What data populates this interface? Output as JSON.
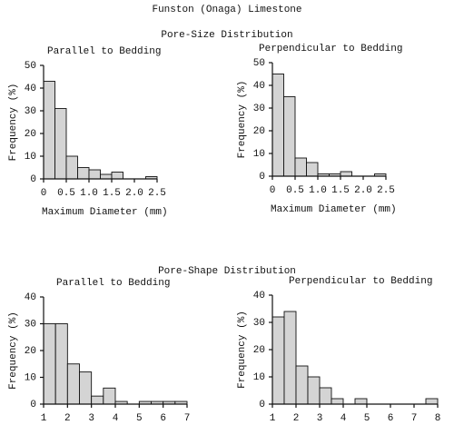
{
  "title": "Funston (Onaga) Limestone",
  "section_titles": [
    "Pore-Size Distribution",
    "Pore-Shape Distribution"
  ],
  "chart_data": [
    {
      "type": "histogram",
      "title": "Parallel to Bedding",
      "x_label": "Maximum Diameter (mm)",
      "y_label": "Frequency (%)",
      "bins": [
        0,
        0.25,
        0.5,
        0.75,
        1.0,
        1.25,
        1.5,
        1.75,
        2.0,
        2.25,
        2.5
      ],
      "values": [
        43,
        31,
        10,
        5,
        4,
        2,
        3,
        0,
        0,
        1
      ],
      "color": "#d4d4d4",
      "xlim": [
        0,
        2.5
      ],
      "ylim": [
        0,
        50
      ],
      "xticks": [
        0,
        0.5,
        {
          "value": 1,
          "label": "1.0"
        },
        1.5,
        {
          "value": 2,
          "label": "2.0"
        },
        2.5
      ],
      "yticks": [
        0,
        10,
        20,
        30,
        40,
        50
      ]
    },
    {
      "type": "histogram",
      "title": "Perpendicular to Bedding",
      "x_label": "Maximum Diameter (mm)",
      "y_label": "Frequency (%)",
      "bins": [
        0,
        0.25,
        0.5,
        0.75,
        1.0,
        1.25,
        1.5,
        1.75,
        2.0,
        2.25,
        2.5
      ],
      "values": [
        45,
        35,
        8,
        6,
        1,
        1,
        2,
        0,
        0,
        1
      ],
      "color": "#d4d4d4",
      "xlim": [
        0,
        2.5
      ],
      "ylim": [
        0,
        50
      ],
      "xticks": [
        0,
        0.5,
        {
          "value": 1,
          "label": "1.0"
        },
        1.5,
        {
          "value": 2,
          "label": "2.0"
        },
        2.5
      ],
      "yticks": [
        0,
        10,
        20,
        30,
        40,
        50
      ]
    },
    {
      "type": "histogram",
      "title": "Parallel to Bedding",
      "x_label": "Maximum:Minimum Diameter",
      "y_label": "Frequency (%)",
      "bins": [
        1,
        1.5,
        2,
        2.5,
        3,
        3.5,
        4,
        4.5,
        5,
        5.5,
        6,
        6.5,
        7
      ],
      "values": [
        30,
        30,
        15,
        12,
        3,
        6,
        1,
        0,
        1,
        1,
        1,
        1
      ],
      "color": "#d4d4d4",
      "xlim": [
        1,
        7
      ],
      "ylim": [
        0,
        40
      ],
      "xticks": [
        1,
        2,
        3,
        4,
        5,
        6,
        7
      ],
      "yticks": [
        0,
        10,
        20,
        30,
        40
      ]
    },
    {
      "type": "histogram",
      "title": "Perpendicular to Bedding",
      "x_label": "Maximum:Minimum Diameter",
      "y_label": "Frequency (%)",
      "bins": [
        1,
        1.5,
        2,
        2.5,
        3,
        3.5,
        4,
        4.5,
        5,
        5.5,
        6,
        6.5,
        7,
        7.5,
        8
      ],
      "values": [
        32,
        34,
        14,
        10,
        6,
        2,
        0,
        2,
        0,
        0,
        0,
        0,
        0,
        2
      ],
      "color": "#d4d4d4",
      "xlim": [
        1,
        8
      ],
      "ylim": [
        0,
        40
      ],
      "xticks": [
        1,
        2,
        3,
        4,
        5,
        6,
        7,
        8
      ],
      "yticks": [
        0,
        10,
        20,
        30,
        40
      ]
    }
  ]
}
